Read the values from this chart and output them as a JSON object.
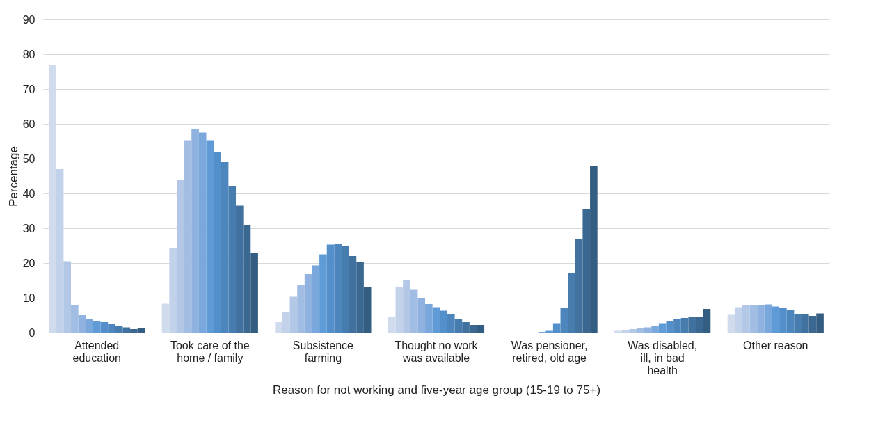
{
  "chart_data": {
    "type": "bar",
    "xlabel": "Reason for not working and five-year age group (15-19 to 75+)",
    "ylabel": "Percentage",
    "categories": [
      "Attended education",
      "Took care of the home / family",
      "Subsistence farming",
      "Thought no work was available",
      "Was pensioner, retired, old age",
      "Was disabled, ill, in bad health",
      "Other reason"
    ],
    "series": [
      {
        "color": "#d0dcee",
        "values": [
          77,
          8.3,
          3,
          4.5,
          0,
          0.5,
          5.1
        ]
      },
      {
        "color": "#c2d2ea",
        "values": [
          47,
          24.3,
          6,
          13,
          0,
          0.7,
          7.3
        ]
      },
      {
        "color": "#b3c8e6",
        "values": [
          20.5,
          44,
          10.3,
          15.2,
          0,
          1,
          8
        ]
      },
      {
        "color": "#a2bde3",
        "values": [
          8,
          55.3,
          13.8,
          12.3,
          0,
          1.2,
          8
        ]
      },
      {
        "color": "#8fb2e0",
        "values": [
          5,
          58.5,
          16.8,
          9.8,
          0,
          1.5,
          7.8
        ]
      },
      {
        "color": "#7aa8dc",
        "values": [
          4,
          57.5,
          19.3,
          8.2,
          0.2,
          2,
          8.1
        ]
      },
      {
        "color": "#5f9bd6",
        "values": [
          3.3,
          55.3,
          22.5,
          7.3,
          0.5,
          2.7,
          7.5
        ]
      },
      {
        "color": "#5390cb",
        "values": [
          3,
          51.8,
          25.3,
          6.3,
          2.7,
          3.3,
          7
        ]
      },
      {
        "color": "#4c86bd",
        "values": [
          2.5,
          49,
          25.5,
          5.2,
          7.1,
          3.8,
          6.5
        ]
      },
      {
        "color": "#467cae",
        "values": [
          2,
          42.2,
          24.8,
          4,
          17,
          4.2,
          5.4
        ]
      },
      {
        "color": "#41729f",
        "values": [
          1.5,
          36.5,
          22,
          3,
          26.8,
          4.5,
          5.2
        ]
      },
      {
        "color": "#3b6891",
        "values": [
          1,
          30.8,
          20.3,
          2.2,
          35.6,
          4.6,
          4.8
        ]
      },
      {
        "color": "#345d82",
        "values": [
          1.3,
          22.8,
          13,
          2.2,
          47.8,
          6.8,
          5.5
        ]
      }
    ],
    "ylim": [
      0,
      90
    ],
    "yticks": [
      0,
      10,
      20,
      30,
      40,
      50,
      60,
      70,
      80,
      90
    ],
    "grid": "y",
    "legend": false
  }
}
